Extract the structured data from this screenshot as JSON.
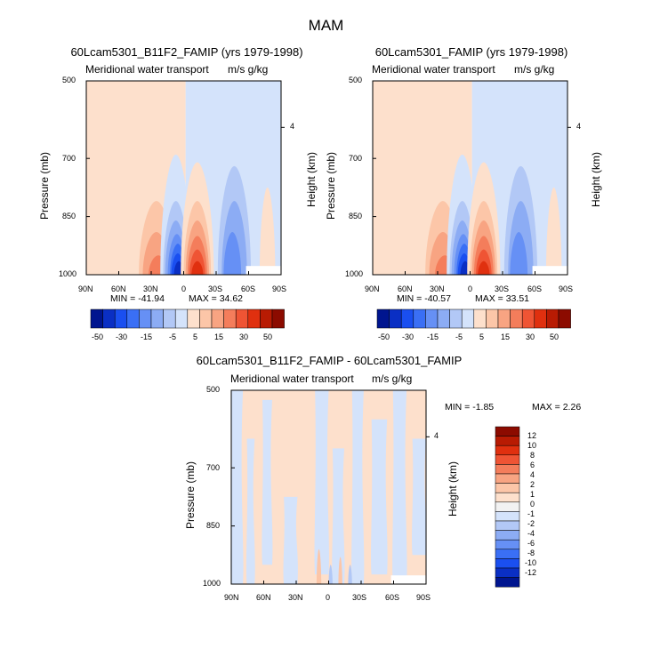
{
  "figure": {
    "title": "MAM"
  },
  "colors": {
    "blue": [
      "#00158f",
      "#0a2fc4",
      "#1a4ff0",
      "#3a6ff5",
      "#6690f5",
      "#8cacf4",
      "#b2c8f6",
      "#d4e3fb"
    ],
    "red": [
      "#fde0cc",
      "#fcc6a8",
      "#f8a482",
      "#f47d5b",
      "#ef5434",
      "#e0300f",
      "#b81b03",
      "#8c0b00"
    ],
    "neutral": "#f2f2f2"
  },
  "chart_data": [
    {
      "type": "heatmap",
      "title": "60Lcam5301_B11F2_FAMIP (yrs 1979-1998)",
      "subtitle": "Meridional water transport",
      "units": "m/s g/kg",
      "xlabel": "",
      "ylabel": "Pressure (mb)",
      "ylabel_right": "Height (km)",
      "x_ticks": [
        "90N",
        "60N",
        "30N",
        "0",
        "30S",
        "60S",
        "90S"
      ],
      "y_ticks": [
        "500",
        "700",
        "850",
        "1000"
      ],
      "right_ticks": [
        "4"
      ],
      "min_label": "MIN = -41.94",
      "max_label": "MAX =  34.62",
      "colorbar_ticks": [
        "-50",
        "-30",
        "-15",
        "-5",
        "5",
        "15",
        "30",
        "50"
      ]
    },
    {
      "type": "heatmap",
      "title": "60Lcam5301_FAMIP (yrs 1979-1998)",
      "subtitle": "Meridional water transport",
      "units": "m/s g/kg",
      "xlabel": "",
      "ylabel": "Pressure (mb)",
      "ylabel_right": "Height (km)",
      "x_ticks": [
        "90N",
        "60N",
        "30N",
        "0",
        "30S",
        "60S",
        "90S"
      ],
      "y_ticks": [
        "500",
        "700",
        "850",
        "1000"
      ],
      "right_ticks": [
        "4"
      ],
      "min_label": "MIN = -40.57",
      "max_label": "MAX =  33.51",
      "colorbar_ticks": [
        "-50",
        "-30",
        "-15",
        "-5",
        "5",
        "15",
        "30",
        "50"
      ]
    },
    {
      "type": "heatmap",
      "title": "60Lcam5301_B11F2_FAMIP - 60Lcam5301_FAMIP",
      "subtitle": "Meridional water transport",
      "units": "m/s g/kg",
      "xlabel": "",
      "ylabel": "Pressure (mb)",
      "ylabel_right": "Height (km)",
      "x_ticks": [
        "90N",
        "60N",
        "30N",
        "0",
        "30S",
        "60S",
        "90S"
      ],
      "y_ticks": [
        "500",
        "700",
        "850",
        "1000"
      ],
      "right_ticks": [
        "4"
      ],
      "min_label": "MIN =  -1.85",
      "max_label": "MAX =   2.26",
      "colorbar_ticks": [
        "12",
        "10",
        "8",
        "6",
        "4",
        "2",
        "1",
        "0",
        "-1",
        "-2",
        "-4",
        "-6",
        "-8",
        "-10",
        "-12"
      ]
    }
  ]
}
